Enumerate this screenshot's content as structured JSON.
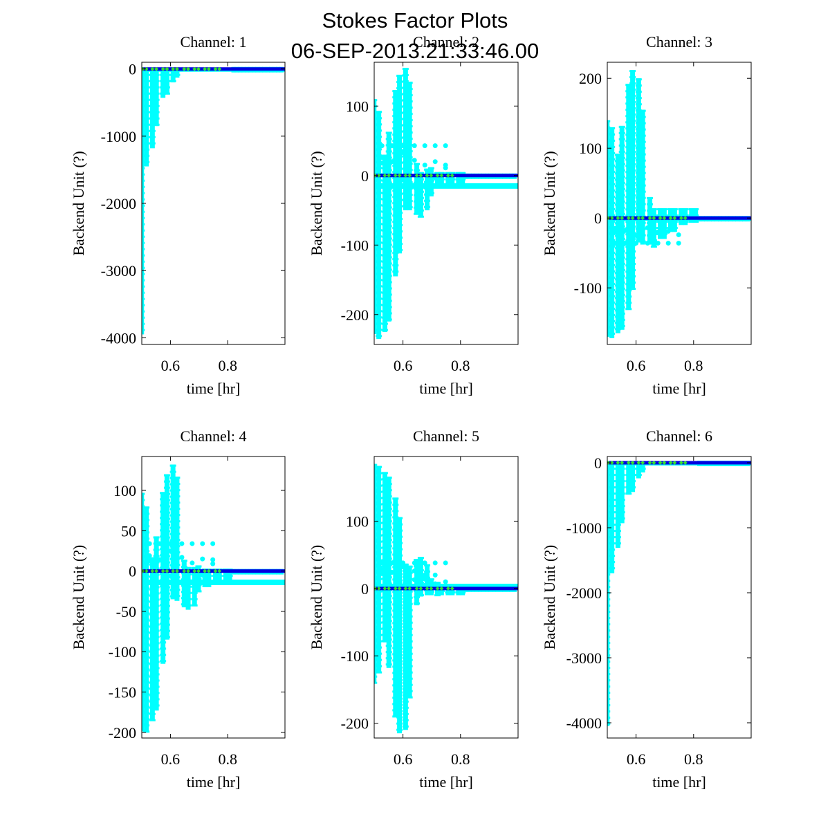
{
  "figure": {
    "title_line1": "Stokes Factor Plots",
    "title_line2": "06-SEP-2013.21:33:46.00"
  },
  "colors": {
    "scatter": "#00ffff",
    "line": "#0000e0",
    "marker": "#33dd33",
    "axis": "#000000"
  },
  "chart_data": [
    {
      "type": "scatter",
      "title": "Channel: 1",
      "xlabel": "time [hr]",
      "ylabel": "Backend Unit (?)",
      "xlim": [
        0.5,
        1.0
      ],
      "ylim": [
        -4100,
        100
      ],
      "xticks": [
        0.6,
        0.8
      ],
      "xtick_labels": [
        "0.6",
        "0.8"
      ],
      "yticks": [
        0,
        -1000,
        -2000,
        -3000,
        -4000
      ],
      "ytick_labels": [
        "0",
        "-1000",
        "-2000",
        "-3000",
        "-4000"
      ],
      "scatter_columns": [
        {
          "t": 0.503,
          "min": -3950,
          "max": 20
        },
        {
          "t": 0.516,
          "min": -1450,
          "max": 20
        },
        {
          "t": 0.537,
          "min": -1180,
          "max": 20
        },
        {
          "t": 0.551,
          "min": -850,
          "max": 20
        },
        {
          "t": 0.574,
          "min": -430,
          "max": 20
        },
        {
          "t": 0.588,
          "min": -380,
          "max": 20
        },
        {
          "t": 0.609,
          "min": -200,
          "max": 20
        },
        {
          "t": 0.623,
          "min": -130,
          "max": 20
        },
        {
          "t": 0.648,
          "min": -30,
          "max": 20
        },
        {
          "t": 0.662,
          "min": -30,
          "max": 20
        },
        {
          "t": 0.684,
          "min": -30,
          "max": 20
        },
        {
          "t": 0.698,
          "min": -30,
          "max": 20
        },
        {
          "t": 0.72,
          "min": -30,
          "max": 20
        },
        {
          "t": 0.734,
          "min": -30,
          "max": 20
        },
        {
          "t": 0.757,
          "min": -30,
          "max": 20
        },
        {
          "t": 0.771,
          "min": -30,
          "max": 20
        },
        {
          "t": 0.793,
          "min": -30,
          "max": 20
        },
        {
          "t": 0.807,
          "min": -30,
          "max": 20
        }
      ],
      "baseline": 0,
      "offset_band": null,
      "outliers": []
    },
    {
      "type": "scatter",
      "title": "Channel: 2",
      "xlabel": "time [hr]",
      "ylabel": "Backend Unit (?)",
      "xlim": [
        0.5,
        1.0
      ],
      "ylim": [
        -243,
        163
      ],
      "xticks": [
        0.6,
        0.8
      ],
      "xtick_labels": [
        "0.6",
        "0.8"
      ],
      "yticks": [
        100,
        0,
        -100,
        -200
      ],
      "ytick_labels": [
        "100",
        "0",
        "-100",
        "-200"
      ],
      "scatter_columns": [
        {
          "t": 0.503,
          "min": -228,
          "max": 110
        },
        {
          "t": 0.516,
          "min": -235,
          "max": 93
        },
        {
          "t": 0.537,
          "min": -225,
          "max": 30
        },
        {
          "t": 0.551,
          "min": -210,
          "max": 63
        },
        {
          "t": 0.574,
          "min": -145,
          "max": 123
        },
        {
          "t": 0.588,
          "min": -112,
          "max": 145
        },
        {
          "t": 0.609,
          "min": -50,
          "max": 155
        },
        {
          "t": 0.623,
          "min": -50,
          "max": 135
        },
        {
          "t": 0.648,
          "min": -55,
          "max": 18
        },
        {
          "t": 0.662,
          "min": -58,
          "max": 5
        },
        {
          "t": 0.684,
          "min": -50,
          "max": 10
        },
        {
          "t": 0.698,
          "min": -30,
          "max": 12
        },
        {
          "t": 0.72,
          "min": -15,
          "max": 5
        },
        {
          "t": 0.734,
          "min": -15,
          "max": 5
        },
        {
          "t": 0.757,
          "min": -15,
          "max": 5
        },
        {
          "t": 0.771,
          "min": -15,
          "max": 5
        },
        {
          "t": 0.793,
          "min": -15,
          "max": 5
        },
        {
          "t": 0.807,
          "min": -15,
          "max": 5
        }
      ],
      "baseline": 0,
      "offset_band": -15,
      "outliers": [
        {
          "t": 0.527,
          "v": 43
        },
        {
          "t": 0.527,
          "v": 26
        },
        {
          "t": 0.527,
          "v": 18
        },
        {
          "t": 0.562,
          "v": 43
        },
        {
          "t": 0.562,
          "v": 20
        },
        {
          "t": 0.6,
          "v": 43
        },
        {
          "t": 0.6,
          "v": 33
        },
        {
          "t": 0.6,
          "v": -5
        },
        {
          "t": 0.64,
          "v": 43
        },
        {
          "t": 0.64,
          "v": 22
        },
        {
          "t": 0.676,
          "v": 43
        },
        {
          "t": 0.676,
          "v": 15
        },
        {
          "t": 0.712,
          "v": 43
        },
        {
          "t": 0.712,
          "v": 20
        },
        {
          "t": 0.712,
          "v": -3
        },
        {
          "t": 0.748,
          "v": 43
        },
        {
          "t": 0.748,
          "v": 15
        },
        {
          "t": 0.748,
          "v": 11
        }
      ]
    },
    {
      "type": "scatter",
      "title": "Channel: 3",
      "xlabel": "time [hr]",
      "ylabel": "Backend Unit (?)",
      "xlim": [
        0.5,
        1.0
      ],
      "ylim": [
        -181,
        223
      ],
      "xticks": [
        0.6,
        0.8
      ],
      "xtick_labels": [
        "0.6",
        "0.8"
      ],
      "yticks": [
        200,
        100,
        0,
        -100
      ],
      "ytick_labels": [
        "200",
        "100",
        "0",
        "-100"
      ],
      "scatter_columns": [
        {
          "t": 0.503,
          "min": -170,
          "max": 140
        },
        {
          "t": 0.516,
          "min": -172,
          "max": 130
        },
        {
          "t": 0.537,
          "min": -165,
          "max": 92
        },
        {
          "t": 0.551,
          "min": -160,
          "max": 132
        },
        {
          "t": 0.574,
          "min": -130,
          "max": 192
        },
        {
          "t": 0.588,
          "min": -100,
          "max": 212
        },
        {
          "t": 0.609,
          "min": -35,
          "max": 200
        },
        {
          "t": 0.623,
          "min": -38,
          "max": 155
        },
        {
          "t": 0.648,
          "min": -38,
          "max": 30
        },
        {
          "t": 0.662,
          "min": -40,
          "max": 14
        },
        {
          "t": 0.684,
          "min": -30,
          "max": 14
        },
        {
          "t": 0.698,
          "min": -30,
          "max": 14
        },
        {
          "t": 0.72,
          "min": -20,
          "max": 14
        },
        {
          "t": 0.734,
          "min": -20,
          "max": 14
        },
        {
          "t": 0.757,
          "min": -10,
          "max": 14
        },
        {
          "t": 0.771,
          "min": -10,
          "max": 14
        },
        {
          "t": 0.793,
          "min": -5,
          "max": 14
        },
        {
          "t": 0.807,
          "min": -5,
          "max": 14
        }
      ],
      "baseline": 0,
      "offset_band": null,
      "outliers": [
        {
          "t": 0.527,
          "v": -36
        },
        {
          "t": 0.527,
          "v": -20
        },
        {
          "t": 0.527,
          "v": -15
        },
        {
          "t": 0.562,
          "v": -36
        },
        {
          "t": 0.562,
          "v": -18
        },
        {
          "t": 0.6,
          "v": -36
        },
        {
          "t": 0.6,
          "v": -25
        },
        {
          "t": 0.64,
          "v": -36
        },
        {
          "t": 0.64,
          "v": -14
        },
        {
          "t": 0.676,
          "v": -36
        },
        {
          "t": 0.676,
          "v": -20
        },
        {
          "t": 0.712,
          "v": -36
        },
        {
          "t": 0.712,
          "v": -19
        },
        {
          "t": 0.748,
          "v": -36
        },
        {
          "t": 0.748,
          "v": -24
        }
      ]
    },
    {
      "type": "scatter",
      "title": "Channel: 4",
      "xlabel": "time [hr]",
      "ylabel": "Backend Unit (?)",
      "xlim": [
        0.5,
        1.0
      ],
      "ylim": [
        -207,
        142
      ],
      "xticks": [
        0.6,
        0.8
      ],
      "xtick_labels": [
        "0.6",
        "0.8"
      ],
      "yticks": [
        100,
        50,
        0,
        -50,
        -100,
        -150,
        -200
      ],
      "ytick_labels": [
        "100",
        "50",
        "0",
        "-50",
        "-100",
        "-150",
        "-200"
      ],
      "scatter_columns": [
        {
          "t": 0.503,
          "min": -197,
          "max": 97
        },
        {
          "t": 0.516,
          "min": -198,
          "max": 80
        },
        {
          "t": 0.537,
          "min": -186,
          "max": 17
        },
        {
          "t": 0.551,
          "min": -173,
          "max": 43
        },
        {
          "t": 0.574,
          "min": -115,
          "max": 98
        },
        {
          "t": 0.588,
          "min": -85,
          "max": 120
        },
        {
          "t": 0.609,
          "min": -35,
          "max": 132
        },
        {
          "t": 0.623,
          "min": -37,
          "max": 117
        },
        {
          "t": 0.648,
          "min": -45,
          "max": 14
        },
        {
          "t": 0.662,
          "min": -48,
          "max": 5
        },
        {
          "t": 0.684,
          "min": -42,
          "max": 5
        },
        {
          "t": 0.698,
          "min": -25,
          "max": 7
        },
        {
          "t": 0.72,
          "min": -20,
          "max": 3
        },
        {
          "t": 0.734,
          "min": -20,
          "max": 3
        },
        {
          "t": 0.757,
          "min": -15,
          "max": 3
        },
        {
          "t": 0.771,
          "min": -15,
          "max": 3
        },
        {
          "t": 0.793,
          "min": -15,
          "max": 3
        },
        {
          "t": 0.807,
          "min": -15,
          "max": 3
        }
      ],
      "baseline": 0,
      "offset_band": -14,
      "outliers": [
        {
          "t": 0.527,
          "v": 34
        },
        {
          "t": 0.527,
          "v": 19
        },
        {
          "t": 0.527,
          "v": 13
        },
        {
          "t": 0.562,
          "v": 34
        },
        {
          "t": 0.562,
          "v": 14
        },
        {
          "t": 0.6,
          "v": 34
        },
        {
          "t": 0.6,
          "v": 25
        },
        {
          "t": 0.6,
          "v": -6
        },
        {
          "t": 0.64,
          "v": 34
        },
        {
          "t": 0.64,
          "v": 17
        },
        {
          "t": 0.676,
          "v": 34
        },
        {
          "t": 0.676,
          "v": 10
        },
        {
          "t": 0.712,
          "v": 34
        },
        {
          "t": 0.712,
          "v": 15
        },
        {
          "t": 0.712,
          "v": -5
        },
        {
          "t": 0.748,
          "v": 34
        },
        {
          "t": 0.748,
          "v": 14
        },
        {
          "t": 0.748,
          "v": 9
        }
      ]
    },
    {
      "type": "scatter",
      "title": "Channel: 5",
      "xlabel": "time [hr]",
      "ylabel": "Backend Unit (?)",
      "xlim": [
        0.5,
        1.0
      ],
      "ylim": [
        -222,
        196
      ],
      "xticks": [
        0.6,
        0.8
      ],
      "xtick_labels": [
        "0.6",
        "0.8"
      ],
      "yticks": [
        100,
        0,
        -100,
        -200
      ],
      "ytick_labels": [
        "100",
        "0",
        "-100",
        "-200"
      ],
      "scatter_columns": [
        {
          "t": 0.503,
          "min": -140,
          "max": 185
        },
        {
          "t": 0.516,
          "min": -125,
          "max": 182
        },
        {
          "t": 0.537,
          "min": -80,
          "max": 173
        },
        {
          "t": 0.551,
          "min": -118,
          "max": 166
        },
        {
          "t": 0.574,
          "min": -190,
          "max": 135
        },
        {
          "t": 0.588,
          "min": -215,
          "max": 106
        },
        {
          "t": 0.609,
          "min": -210,
          "max": 37
        },
        {
          "t": 0.623,
          "min": -162,
          "max": 34
        },
        {
          "t": 0.648,
          "min": -25,
          "max": 44
        },
        {
          "t": 0.662,
          "min": -12,
          "max": 47
        },
        {
          "t": 0.684,
          "min": -10,
          "max": 36
        },
        {
          "t": 0.698,
          "min": -10,
          "max": 15
        },
        {
          "t": 0.72,
          "min": -10,
          "max": 10
        },
        {
          "t": 0.734,
          "min": -10,
          "max": 7
        },
        {
          "t": 0.757,
          "min": -10,
          "max": 5
        },
        {
          "t": 0.771,
          "min": -10,
          "max": 5
        },
        {
          "t": 0.793,
          "min": -10,
          "max": 5
        },
        {
          "t": 0.807,
          "min": -10,
          "max": 5
        }
      ],
      "baseline": 0,
      "offset_band": 3,
      "outliers": [
        {
          "t": 0.527,
          "v": 38
        },
        {
          "t": 0.527,
          "v": 28
        },
        {
          "t": 0.527,
          "v": 22
        },
        {
          "t": 0.562,
          "v": 38
        },
        {
          "t": 0.562,
          "v": 24
        },
        {
          "t": 0.6,
          "v": 38
        },
        {
          "t": 0.6,
          "v": 32
        },
        {
          "t": 0.64,
          "v": 38
        },
        {
          "t": 0.64,
          "v": 26
        },
        {
          "t": 0.64,
          "v": 13
        },
        {
          "t": 0.676,
          "v": 38
        },
        {
          "t": 0.676,
          "v": 20
        },
        {
          "t": 0.676,
          "v": 14
        },
        {
          "t": 0.712,
          "v": 38
        },
        {
          "t": 0.712,
          "v": 20
        },
        {
          "t": 0.712,
          "v": 7
        },
        {
          "t": 0.748,
          "v": 38
        },
        {
          "t": 0.748,
          "v": 10
        }
      ]
    },
    {
      "type": "scatter",
      "title": "Channel: 6",
      "xlabel": "time [hr]",
      "ylabel": "Backend Unit (?)",
      "xlim": [
        0.5,
        1.0
      ],
      "ylim": [
        -4234,
        96
      ],
      "xticks": [
        0.6,
        0.8
      ],
      "xtick_labels": [
        "0.6",
        "0.8"
      ],
      "yticks": [
        0,
        -1000,
        -2000,
        -3000,
        -4000
      ],
      "ytick_labels": [
        "0",
        "-1000",
        "-2000",
        "-3000",
        "-4000"
      ],
      "scatter_columns": [
        {
          "t": 0.503,
          "min": -4050,
          "max": 20
        },
        {
          "t": 0.516,
          "min": -1700,
          "max": 20
        },
        {
          "t": 0.537,
          "min": -1310,
          "max": 20
        },
        {
          "t": 0.551,
          "min": -930,
          "max": 20
        },
        {
          "t": 0.574,
          "min": -490,
          "max": 20
        },
        {
          "t": 0.588,
          "min": -450,
          "max": 20
        },
        {
          "t": 0.609,
          "min": -240,
          "max": 20
        },
        {
          "t": 0.623,
          "min": -150,
          "max": 20
        },
        {
          "t": 0.648,
          "min": -40,
          "max": 20
        },
        {
          "t": 0.662,
          "min": -40,
          "max": 20
        },
        {
          "t": 0.684,
          "min": -40,
          "max": 20
        },
        {
          "t": 0.698,
          "min": -40,
          "max": 20
        },
        {
          "t": 0.72,
          "min": -40,
          "max": 20
        },
        {
          "t": 0.734,
          "min": -40,
          "max": 20
        },
        {
          "t": 0.757,
          "min": -40,
          "max": 20
        },
        {
          "t": 0.771,
          "min": -40,
          "max": 20
        },
        {
          "t": 0.793,
          "min": -40,
          "max": 20
        },
        {
          "t": 0.807,
          "min": -40,
          "max": 20
        }
      ],
      "baseline": 0,
      "offset_band": null,
      "outliers": []
    }
  ]
}
